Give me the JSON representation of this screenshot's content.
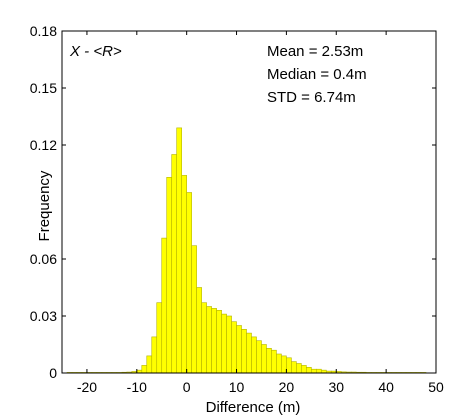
{
  "chart_data": {
    "type": "bar",
    "title": "",
    "xlabel": "Difference (m)",
    "ylabel": "Frequency",
    "xlim": [
      -25,
      50
    ],
    "ylim": [
      0,
      0.18
    ],
    "xticks": [
      -20,
      -10,
      0,
      10,
      20,
      30,
      40,
      50
    ],
    "xtick_labels": [
      "-20",
      "-10",
      "0",
      "10",
      "20",
      "30",
      "40",
      "50"
    ],
    "yticks": [
      0,
      0.03,
      0.06,
      0.12,
      0.15,
      0.18
    ],
    "ytick_labels": [
      "0",
      "0.03",
      "0.06",
      "0.12",
      "0.15",
      "0.18"
    ],
    "grid": false,
    "bar_color": "#ffff00",
    "edge_color": "#b3b300",
    "annotation_top_left": "X - <R>",
    "stats": [
      "Mean = 2.53m",
      "Median = 0.4m",
      "STD = 6.74m"
    ],
    "bins": [
      {
        "x": -24,
        "y": 0.0003
      },
      {
        "x": -23,
        "y": 0.0003
      },
      {
        "x": -22,
        "y": 0.0003
      },
      {
        "x": -21,
        "y": 0.0003
      },
      {
        "x": -20,
        "y": 0.0003
      },
      {
        "x": -19,
        "y": 0.0003
      },
      {
        "x": -18,
        "y": 0.0003
      },
      {
        "x": -17,
        "y": 0.0003
      },
      {
        "x": -16,
        "y": 0.0003
      },
      {
        "x": -15,
        "y": 0.0003
      },
      {
        "x": -14,
        "y": 0.0003
      },
      {
        "x": -13,
        "y": 0.0004
      },
      {
        "x": -12,
        "y": 0.0005
      },
      {
        "x": -11,
        "y": 0.0008
      },
      {
        "x": -10,
        "y": 0.0015
      },
      {
        "x": -9,
        "y": 0.004
      },
      {
        "x": -8,
        "y": 0.009
      },
      {
        "x": -7,
        "y": 0.019
      },
      {
        "x": -6,
        "y": 0.037
      },
      {
        "x": -5,
        "y": 0.071
      },
      {
        "x": -4,
        "y": 0.103
      },
      {
        "x": -3,
        "y": 0.115
      },
      {
        "x": -2,
        "y": 0.129
      },
      {
        "x": -1,
        "y": 0.104
      },
      {
        "x": 0,
        "y": 0.095
      },
      {
        "x": 1,
        "y": 0.067
      },
      {
        "x": 2,
        "y": 0.045
      },
      {
        "x": 3,
        "y": 0.037
      },
      {
        "x": 4,
        "y": 0.035
      },
      {
        "x": 5,
        "y": 0.034
      },
      {
        "x": 6,
        "y": 0.033
      },
      {
        "x": 7,
        "y": 0.031
      },
      {
        "x": 8,
        "y": 0.03
      },
      {
        "x": 9,
        "y": 0.027
      },
      {
        "x": 10,
        "y": 0.025
      },
      {
        "x": 11,
        "y": 0.023
      },
      {
        "x": 12,
        "y": 0.021
      },
      {
        "x": 13,
        "y": 0.019
      },
      {
        "x": 14,
        "y": 0.017
      },
      {
        "x": 15,
        "y": 0.015
      },
      {
        "x": 16,
        "y": 0.013
      },
      {
        "x": 17,
        "y": 0.012
      },
      {
        "x": 18,
        "y": 0.01
      },
      {
        "x": 19,
        "y": 0.009
      },
      {
        "x": 20,
        "y": 0.008
      },
      {
        "x": 21,
        "y": 0.006
      },
      {
        "x": 22,
        "y": 0.005
      },
      {
        "x": 23,
        "y": 0.004
      },
      {
        "x": 24,
        "y": 0.003
      },
      {
        "x": 25,
        "y": 0.002
      },
      {
        "x": 26,
        "y": 0.002
      },
      {
        "x": 27,
        "y": 0.0015
      },
      {
        "x": 28,
        "y": 0.001
      },
      {
        "x": 29,
        "y": 0.001
      },
      {
        "x": 30,
        "y": 0.0008
      },
      {
        "x": 31,
        "y": 0.0006
      },
      {
        "x": 32,
        "y": 0.0005
      },
      {
        "x": 33,
        "y": 0.0005
      },
      {
        "x": 34,
        "y": 0.0004
      },
      {
        "x": 35,
        "y": 0.0004
      },
      {
        "x": 36,
        "y": 0.0003
      },
      {
        "x": 37,
        "y": 0.0003
      },
      {
        "x": 38,
        "y": 0.0003
      },
      {
        "x": 39,
        "y": 0.0003
      },
      {
        "x": 40,
        "y": 0.0003
      },
      {
        "x": 41,
        "y": 0.0003
      },
      {
        "x": 42,
        "y": 0.0003
      },
      {
        "x": 43,
        "y": 0.0003
      },
      {
        "x": 44,
        "y": 0.0003
      },
      {
        "x": 45,
        "y": 0.0003
      },
      {
        "x": 46,
        "y": 0.0003
      },
      {
        "x": 47,
        "y": 0.0003
      }
    ]
  }
}
